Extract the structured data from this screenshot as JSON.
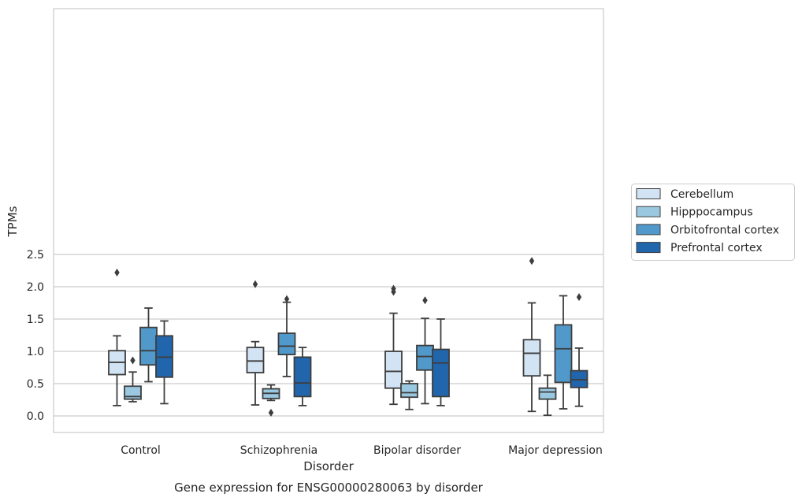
{
  "chart_data": {
    "type": "box",
    "title": "",
    "caption": "Gene expression for ENSG00000280063 by disorder",
    "xlabel": "Disorder",
    "ylabel": "TPMs",
    "ylim": [
      -0.1,
      2.53
    ],
    "yticks": [
      0.0,
      0.5,
      1.0,
      1.5,
      2.0,
      2.5
    ],
    "ytick_labels": [
      "0.0",
      "0.5",
      "1.0",
      "1.5",
      "2.0",
      "2.5"
    ],
    "grid": "horizontal",
    "legend_position": "right",
    "categories": [
      "Control",
      "Schizophrenia",
      "Bipolar disorder",
      "Major depression"
    ],
    "series": [
      {
        "name": "Cerebellum",
        "color": "#d2e3f3",
        "boxes": [
          {
            "whislo": 0.16,
            "q1": 0.64,
            "med": 0.83,
            "q3": 1.01,
            "whishi": 1.24,
            "fliers": [
              2.22
            ]
          },
          {
            "whislo": 0.17,
            "q1": 0.67,
            "med": 0.85,
            "q3": 1.06,
            "whishi": 1.15,
            "fliers": [
              2.04
            ]
          },
          {
            "whislo": 0.18,
            "q1": 0.43,
            "med": 0.69,
            "q3": 1.0,
            "whishi": 1.59,
            "fliers": [
              1.92,
              1.97
            ]
          },
          {
            "whislo": 0.07,
            "q1": 0.62,
            "med": 0.97,
            "q3": 1.18,
            "whishi": 1.75,
            "fliers": [
              2.4
            ]
          }
        ]
      },
      {
        "name": "Hipppocampus",
        "color": "#9ac8e0",
        "boxes": [
          {
            "whislo": 0.22,
            "q1": 0.26,
            "med": 0.3,
            "q3": 0.46,
            "whishi": 0.68,
            "fliers": [
              0.86
            ]
          },
          {
            "whislo": 0.24,
            "q1": 0.27,
            "med": 0.35,
            "q3": 0.42,
            "whishi": 0.48,
            "fliers": [
              0.05
            ]
          },
          {
            "whislo": 0.1,
            "q1": 0.29,
            "med": 0.36,
            "q3": 0.5,
            "whishi": 0.54,
            "fliers": []
          },
          {
            "whislo": 0.01,
            "q1": 0.26,
            "med": 0.37,
            "q3": 0.43,
            "whishi": 0.63,
            "fliers": []
          }
        ]
      },
      {
        "name": "Orbitofrontal cortex",
        "color": "#5299cb",
        "boxes": [
          {
            "whislo": 0.53,
            "q1": 0.79,
            "med": 1.01,
            "q3": 1.37,
            "whishi": 1.67,
            "fliers": []
          },
          {
            "whislo": 0.61,
            "q1": 0.95,
            "med": 1.08,
            "q3": 1.28,
            "whishi": 1.76,
            "fliers": [
              1.81
            ]
          },
          {
            "whislo": 0.19,
            "q1": 0.71,
            "med": 0.92,
            "q3": 1.09,
            "whishi": 1.51,
            "fliers": [
              1.79
            ]
          },
          {
            "whislo": 0.11,
            "q1": 0.52,
            "med": 1.04,
            "q3": 1.41,
            "whishi": 1.86,
            "fliers": []
          }
        ]
      },
      {
        "name": "Prefrontal cortex",
        "color": "#2166ac",
        "boxes": [
          {
            "whislo": 0.19,
            "q1": 0.6,
            "med": 0.91,
            "q3": 1.24,
            "whishi": 1.47,
            "fliers": []
          },
          {
            "whislo": 0.16,
            "q1": 0.3,
            "med": 0.51,
            "q3": 0.91,
            "whishi": 1.06,
            "fliers": []
          },
          {
            "whislo": 0.16,
            "q1": 0.3,
            "med": 0.82,
            "q3": 1.03,
            "whishi": 1.5,
            "fliers": []
          },
          {
            "whislo": 0.15,
            "q1": 0.44,
            "med": 0.56,
            "q3": 0.7,
            "whishi": 1.05,
            "fliers": [
              1.84
            ]
          }
        ]
      }
    ]
  }
}
